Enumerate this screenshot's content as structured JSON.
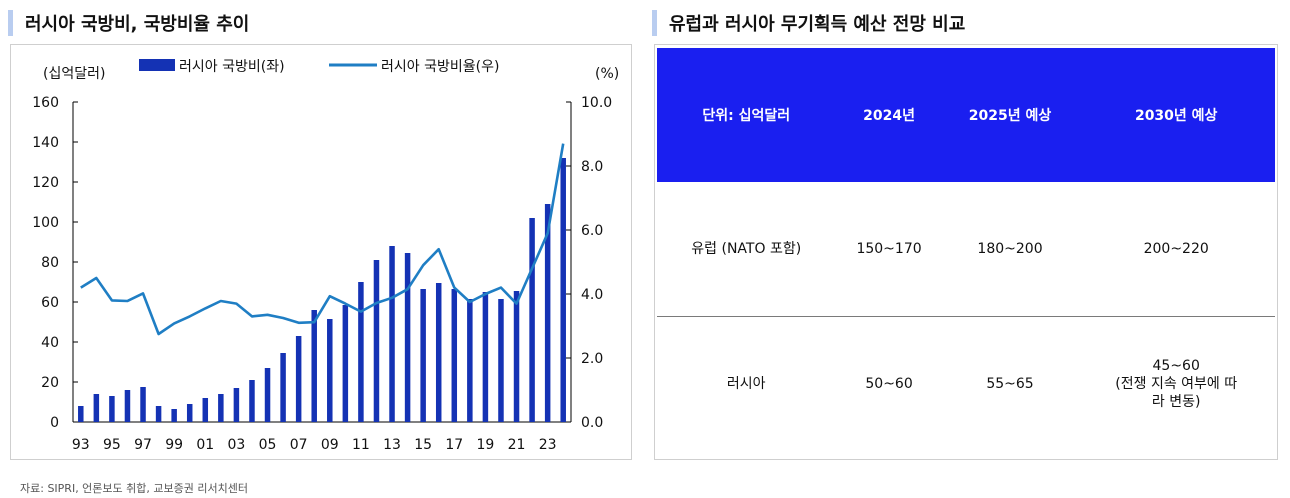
{
  "left_title": "러시아 국방비, 국방비율 추이",
  "right_title": "유럽과 러시아 무기획득 예산 전망 비교",
  "source": "자료: SIPRI, 언론보도 취합, 교보증권 리서치센터",
  "chart_data": {
    "type": "bar+line",
    "left_unit": "(십억달러)",
    "right_unit": "(%)",
    "legend": [
      "러시아 국방비(좌)",
      "러시아 국방비율(우)"
    ],
    "bar_color": "#1432b4",
    "line_color": "#1f7ec4",
    "x_ticks": [
      "93",
      "95",
      "97",
      "99",
      "01",
      "03",
      "05",
      "07",
      "09",
      "11",
      "13",
      "15",
      "17",
      "19",
      "21",
      "23"
    ],
    "years": [
      1993,
      1994,
      1995,
      1996,
      1997,
      1998,
      1999,
      2000,
      2001,
      2002,
      2003,
      2004,
      2005,
      2006,
      2007,
      2008,
      2009,
      2010,
      2011,
      2012,
      2013,
      2014,
      2015,
      2016,
      2017,
      2018,
      2019,
      2020,
      2021,
      2022,
      2023,
      2024
    ],
    "spending": [
      8,
      14,
      13,
      16,
      17.5,
      8,
      6.5,
      9,
      12,
      14,
      17,
      21,
      27,
      34.5,
      43,
      56,
      51.5,
      58.5,
      70,
      81,
      88,
      84.5,
      66.5,
      69.5,
      66.5,
      61.5,
      65,
      61.5,
      65.5,
      102,
      109,
      132
    ],
    "ratio": [
      4.2,
      4.5,
      3.8,
      3.78,
      4.02,
      2.75,
      3.08,
      3.3,
      3.55,
      3.78,
      3.7,
      3.3,
      3.35,
      3.25,
      3.1,
      3.12,
      3.93,
      3.7,
      3.45,
      3.72,
      3.88,
      4.15,
      4.9,
      5.4,
      4.2,
      3.75,
      4.0,
      4.2,
      3.7,
      4.8,
      5.9,
      8.7
    ],
    "left_ticks": [
      "0",
      "20",
      "40",
      "60",
      "80",
      "100",
      "120",
      "140",
      "160"
    ],
    "right_ticks": [
      "0.0",
      "2.0",
      "4.0",
      "6.0",
      "8.0",
      "10.0"
    ],
    "left_range": [
      0,
      160
    ],
    "right_range": [
      0,
      10
    ]
  },
  "table": {
    "headers": [
      "단위: 십억달러",
      "2024년",
      "2025년 예상",
      "2030년 예상"
    ],
    "rows": [
      [
        "유럽 (NATO 포함)",
        "150~170",
        "180~200",
        "200~220"
      ],
      [
        "러시아",
        "50~60",
        "55~65",
        "45~60\n(전쟁 지속 여부에 따\n라 변동)"
      ]
    ]
  }
}
